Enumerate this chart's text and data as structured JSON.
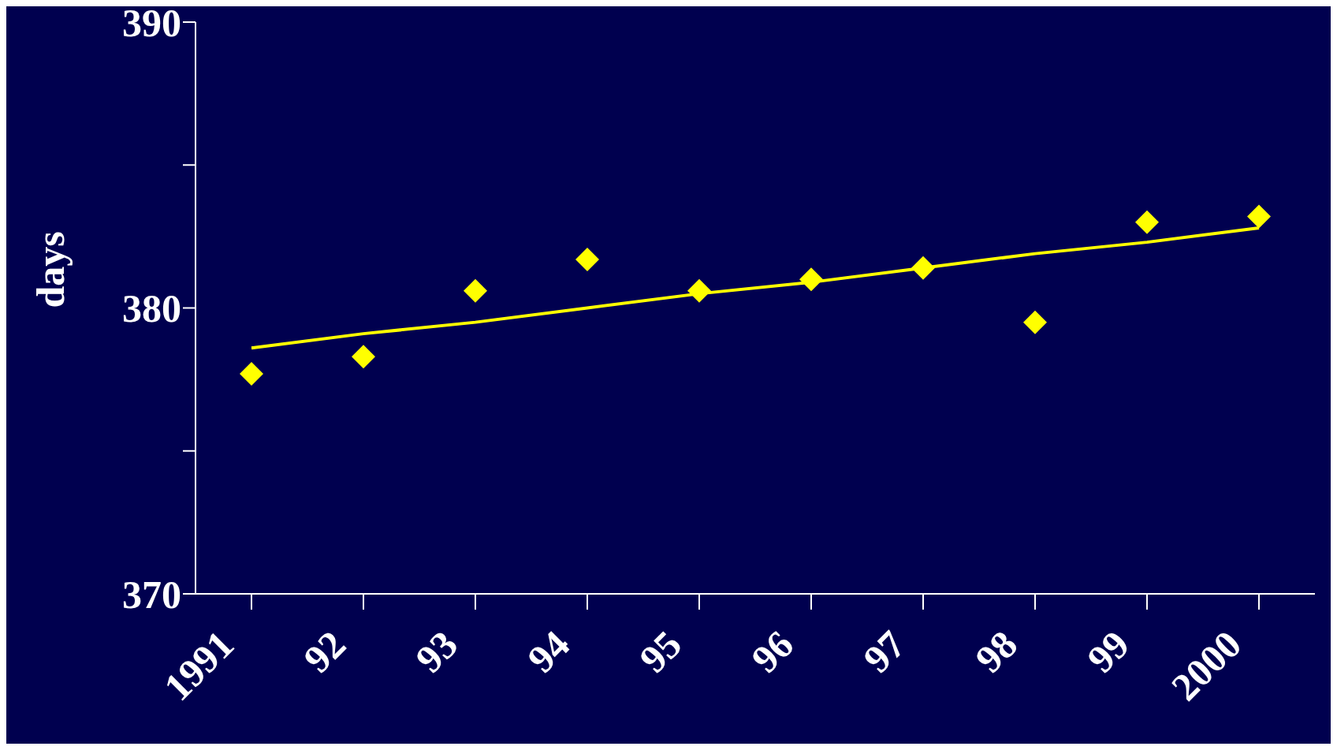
{
  "chart_data": {
    "type": "scatter",
    "ylabel": "days",
    "categories": [
      "1991",
      "92",
      "93",
      "94",
      "95",
      "96",
      "97",
      "98",
      "99",
      "2000"
    ],
    "ylim": [
      370,
      390
    ],
    "yticks": [
      370,
      {
        "value": 375,
        "label": null
      },
      380,
      {
        "value": 385,
        "label": null
      },
      390
    ],
    "grid": false,
    "legend": false,
    "series": [
      {
        "color": "#ffff00",
        "marker": "diamond",
        "values": [
          377.7,
          378.3,
          380.6,
          381.7,
          380.6,
          381.0,
          381.4,
          379.5,
          383.0,
          383.2
        ]
      },
      {
        "type": "line",
        "color": "#ffff00",
        "values": [
          378.6,
          379.1,
          379.5,
          380.0,
          380.5,
          380.9,
          381.4,
          381.9,
          382.3,
          382.8
        ]
      }
    ]
  }
}
